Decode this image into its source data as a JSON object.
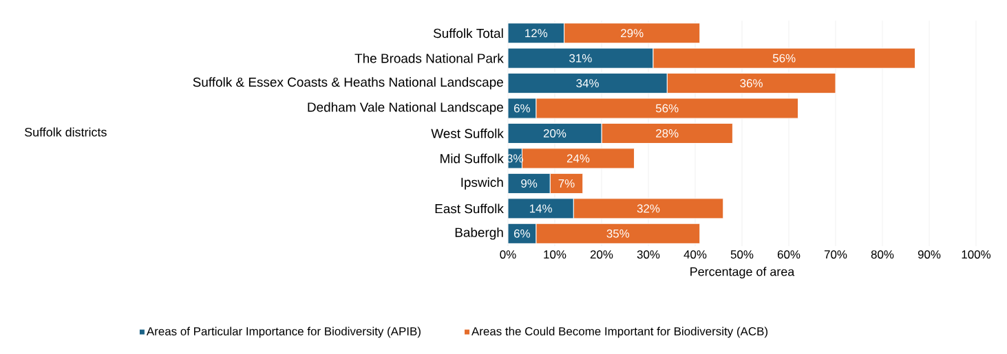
{
  "chart_data": {
    "type": "bar",
    "orientation": "horizontal",
    "stacked": true,
    "categories": [
      "Suffolk Total",
      "The Broads National Park",
      "Suffolk & Essex Coasts & Heaths National Landscape",
      "Dedham Vale National Landscape",
      "West Suffolk",
      "Mid Suffolk",
      "Ipswich",
      "East Suffolk",
      "Babergh"
    ],
    "series": [
      {
        "name": "Areas of Particular Importance for Biodiversity (APIB)",
        "color": "#1b6286",
        "values": [
          12,
          31,
          34,
          6,
          20,
          3,
          9,
          14,
          6
        ],
        "value_labels": [
          "12%",
          "31%",
          "34%",
          "6%",
          "20%",
          "3%",
          "9%",
          "14%",
          "6%"
        ]
      },
      {
        "name": "Areas the Could Become Important for Biodiversity (ACB)",
        "color": "#e46c2b",
        "values": [
          29,
          56,
          36,
          56,
          28,
          24,
          7,
          32,
          35
        ],
        "value_labels": [
          "29%",
          "56%",
          "36%",
          "56%",
          "28%",
          "24%",
          "7%",
          "32%",
          "35%"
        ]
      }
    ],
    "xlim": [
      0,
      100
    ],
    "xticks": [
      {
        "value": 0,
        "label": "0%"
      },
      {
        "value": 10,
        "label": "10%"
      },
      {
        "value": 20,
        "label": "20%"
      },
      {
        "value": 30,
        "label": "30%"
      },
      {
        "value": 40,
        "label": "40%"
      },
      {
        "value": 50,
        "label": "50%"
      },
      {
        "value": 60,
        "label": "60%"
      },
      {
        "value": 70,
        "label": "70%"
      },
      {
        "value": 80,
        "label": "80%"
      },
      {
        "value": 90,
        "label": "90%"
      },
      {
        "value": 100,
        "label": "100%"
      }
    ],
    "xlabel": "Percentage of area",
    "annotations": [
      "Suffolk districts"
    ],
    "grid": "x",
    "legend": "bottom"
  }
}
